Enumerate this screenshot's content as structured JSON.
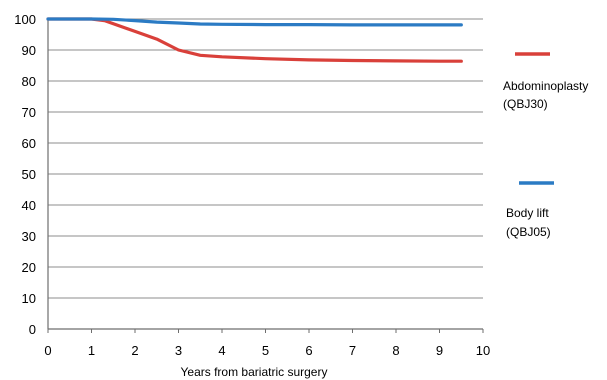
{
  "chart_data": {
    "type": "line",
    "title": "",
    "xlabel": "Years from bariatric surgery",
    "ylabel": "",
    "xlim": [
      0,
      10
    ],
    "ylim": [
      0,
      100
    ],
    "x_ticks": [
      0,
      1,
      2,
      3,
      4,
      5,
      6,
      7,
      8,
      9,
      10
    ],
    "y_ticks": [
      0,
      10,
      20,
      30,
      40,
      50,
      60,
      70,
      80,
      90,
      100
    ],
    "grid": "horizontal",
    "legend_position": "right",
    "series": [
      {
        "name": "Abdominoplasty (QBJ30)",
        "label_lines": [
          "Abdominoplasty",
          "(QBJ30)"
        ],
        "color": "#d9403a",
        "x": [
          0,
          1,
          1.3,
          1.6,
          2,
          2.5,
          3,
          3.5,
          4,
          5,
          6,
          7,
          8,
          9,
          9.5
        ],
        "y": [
          100,
          100,
          99.5,
          98,
          96,
          93.5,
          90,
          88.3,
          87.8,
          87.2,
          86.8,
          86.6,
          86.5,
          86.4,
          86.4
        ]
      },
      {
        "name": "Body lift (QBJ05)",
        "label_lines": [
          "Body lift",
          "(QBJ05)"
        ],
        "color": "#2b7bc4",
        "x": [
          0,
          1,
          1.5,
          2,
          2.5,
          3,
          3.5,
          4,
          5,
          6,
          7,
          8,
          9,
          9.5
        ],
        "y": [
          100,
          100,
          99.9,
          99.5,
          99,
          98.7,
          98.4,
          98.3,
          98.2,
          98.2,
          98.1,
          98.1,
          98.1,
          98.1
        ]
      }
    ]
  }
}
